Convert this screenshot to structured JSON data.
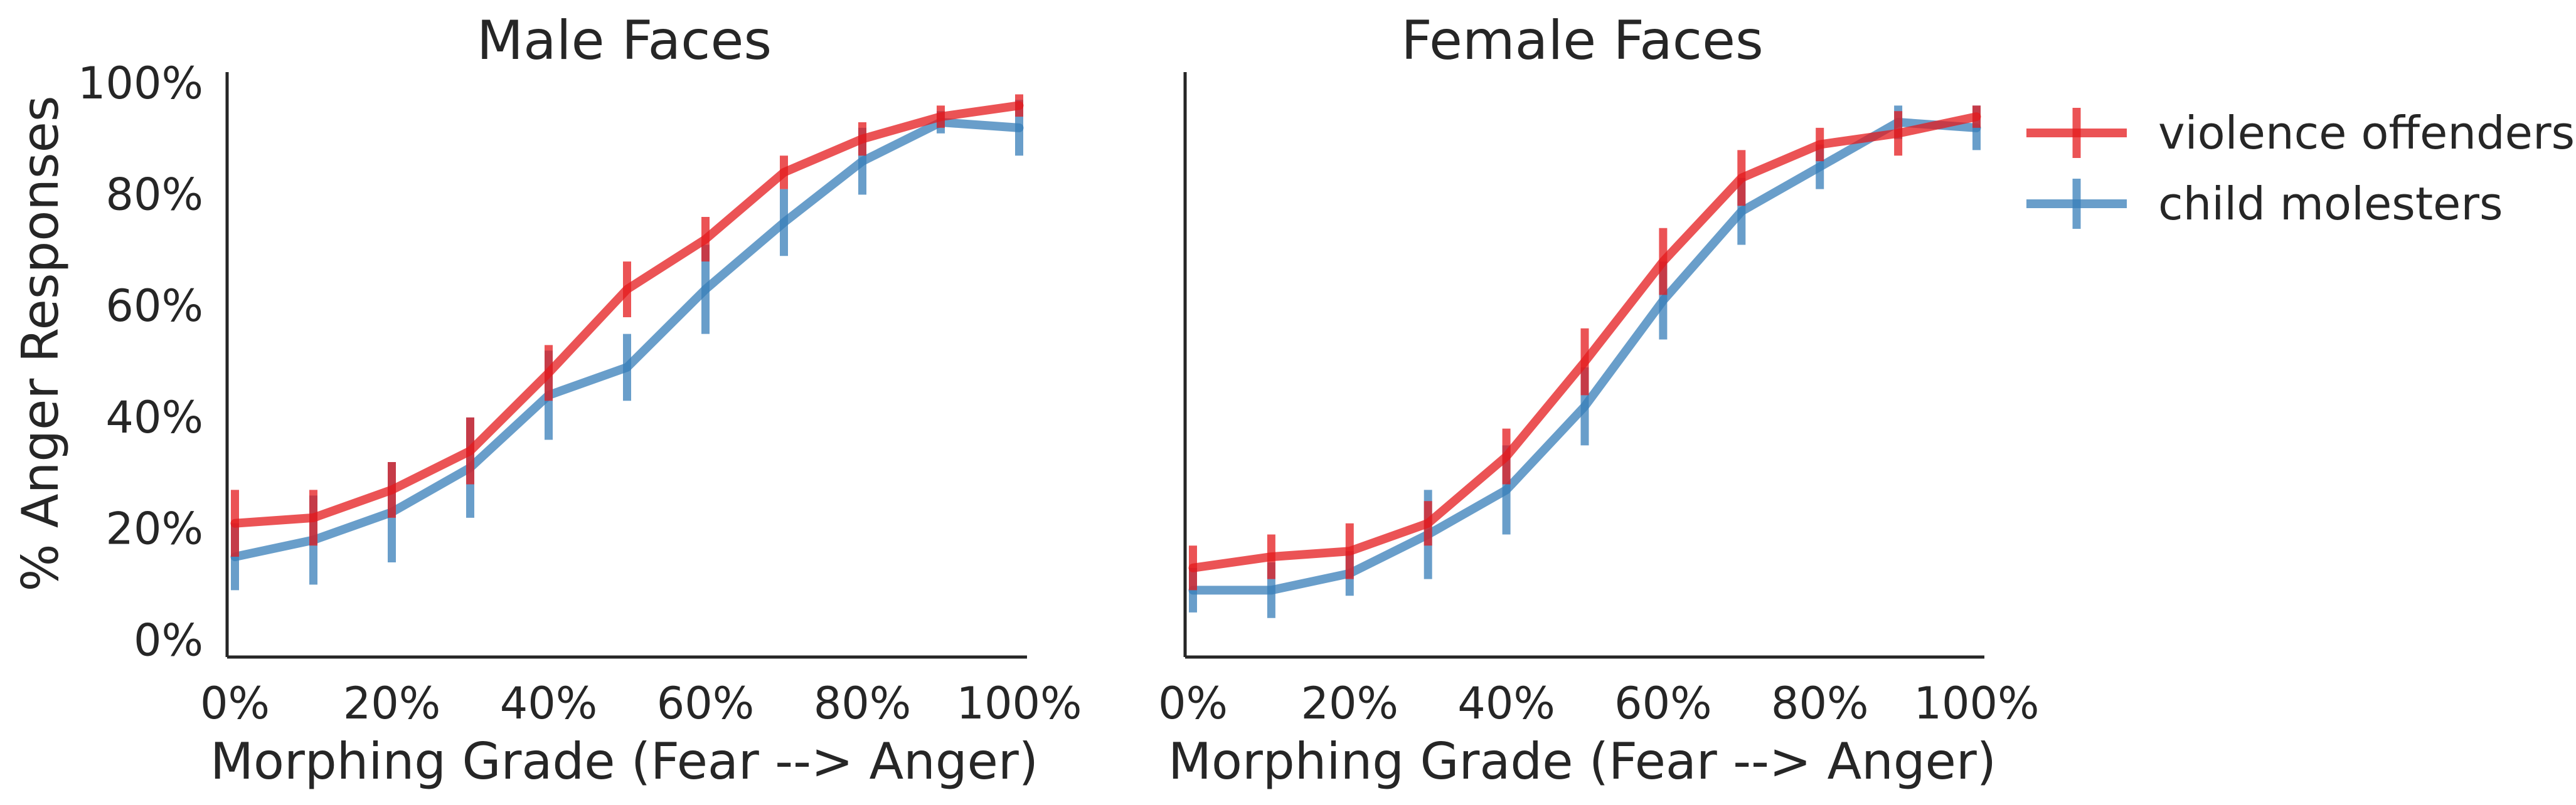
{
  "chart_data": [
    {
      "type": "line",
      "title": "Male Faces",
      "xlabel": "Morphing Grade (Fear --> Anger)",
      "ylabel": "% Anger Responses",
      "x": [
        0,
        10,
        20,
        30,
        40,
        50,
        60,
        70,
        80,
        90,
        100
      ],
      "xlim": [
        -1,
        101
      ],
      "ylim": [
        -3,
        102
      ],
      "xticks": [
        0,
        20,
        40,
        60,
        80,
        100
      ],
      "xtick_labels": [
        "0%",
        "20%",
        "40%",
        "60%",
        "80%",
        "100%"
      ],
      "yticks": [
        0,
        20,
        40,
        60,
        80,
        100
      ],
      "ytick_labels": [
        "0%",
        "20%",
        "40%",
        "60%",
        "80%",
        "100%"
      ],
      "grid": false,
      "series": [
        {
          "name": "violence offenders",
          "color": "#e41a1c",
          "values": [
            21,
            22,
            27,
            34,
            48,
            63,
            72,
            84,
            90,
            94,
            96
          ],
          "error": [
            6,
            5,
            5,
            6,
            5,
            5,
            4,
            3,
            3,
            2,
            2
          ]
        },
        {
          "name": "child molesters",
          "color": "#377eb8",
          "values": [
            15,
            18,
            23,
            31,
            44,
            49,
            63,
            75,
            86,
            93,
            92
          ],
          "error": [
            6,
            8,
            9,
            9,
            8,
            6,
            8,
            6,
            6,
            2,
            5
          ]
        }
      ]
    },
    {
      "type": "line",
      "title": "Female Faces",
      "xlabel": "Morphing Grade (Fear --> Anger)",
      "ylabel": "",
      "x": [
        0,
        10,
        20,
        30,
        40,
        50,
        60,
        70,
        80,
        90,
        100
      ],
      "xlim": [
        -1,
        101
      ],
      "ylim": [
        -3,
        102
      ],
      "xticks": [
        0,
        20,
        40,
        60,
        80,
        100
      ],
      "xtick_labels": [
        "0%",
        "20%",
        "40%",
        "60%",
        "80%",
        "100%"
      ],
      "yticks": [],
      "ytick_labels": [],
      "grid": false,
      "series": [
        {
          "name": "violence offenders",
          "color": "#e41a1c",
          "values": [
            13,
            15,
            16,
            21,
            33,
            50,
            68,
            83,
            89,
            91,
            94
          ],
          "error": [
            4,
            4,
            5,
            4,
            5,
            6,
            6,
            5,
            3,
            4,
            2
          ]
        },
        {
          "name": "child molesters",
          "color": "#377eb8",
          "values": [
            9,
            9,
            12,
            19,
            27,
            42,
            61,
            77,
            85,
            93,
            92
          ],
          "error": [
            4,
            5,
            4,
            8,
            8,
            7,
            7,
            6,
            4,
            3,
            4
          ]
        }
      ]
    }
  ],
  "legend": {
    "placement": "right",
    "entries": [
      {
        "label": "violence offenders",
        "color": "#e41a1c"
      },
      {
        "label": "child molesters",
        "color": "#377eb8"
      }
    ]
  }
}
